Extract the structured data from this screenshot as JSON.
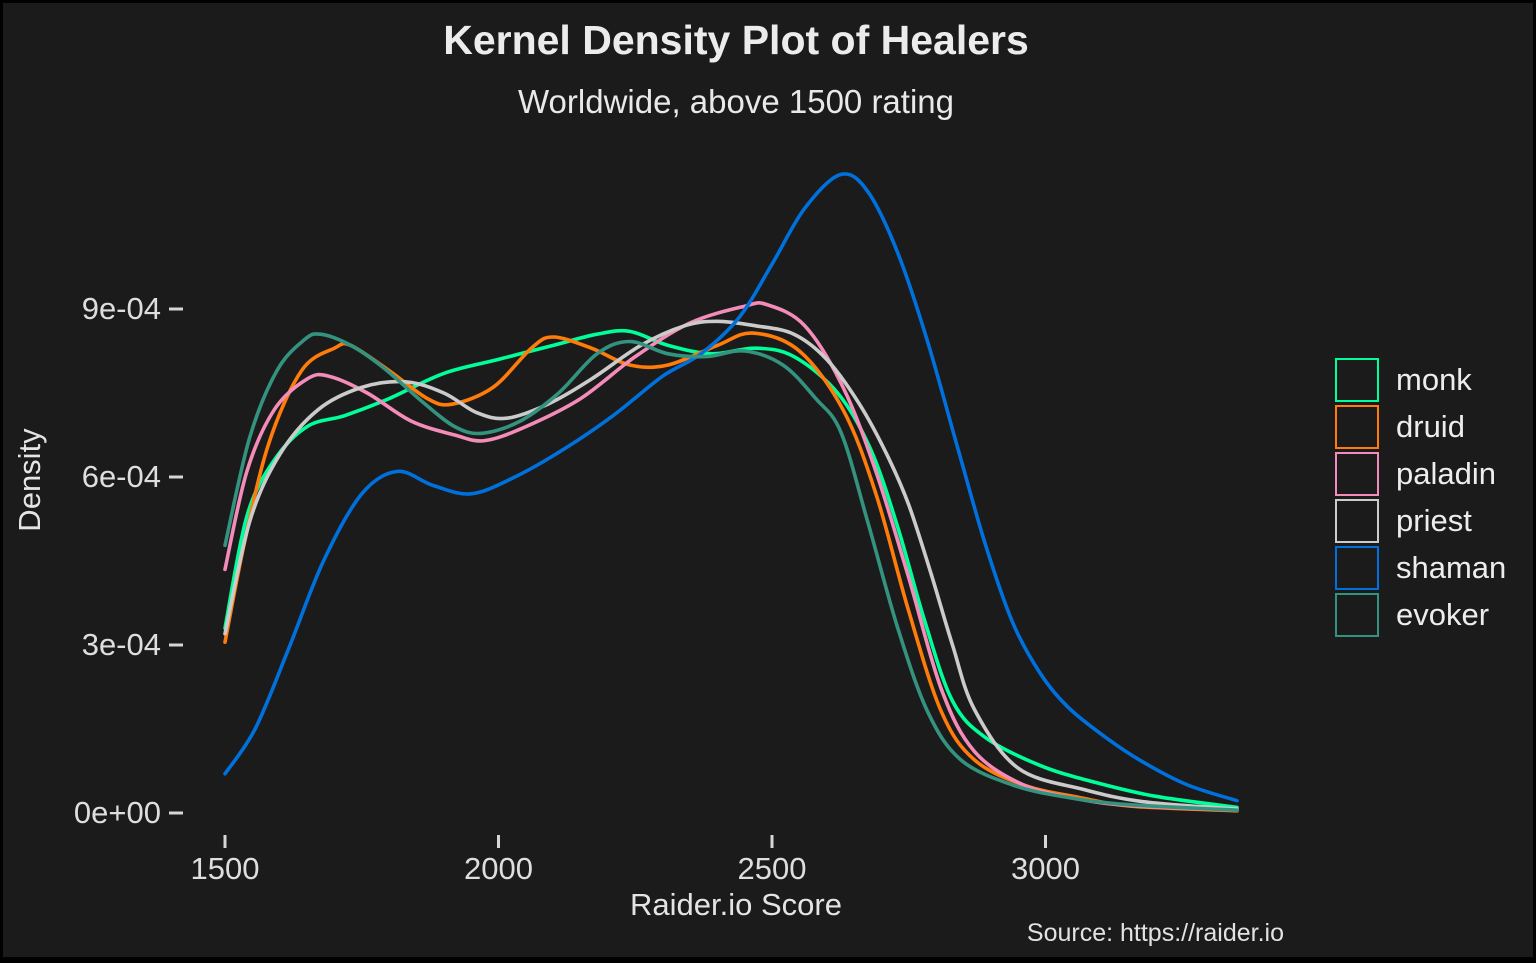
{
  "figure": {
    "title": "Kernel Density Plot of Healers",
    "subtitle": "Worldwide, above 1500 rating",
    "caption": "Source: https://raider.io",
    "background_color": "#1B1B1B",
    "text_color": "#E6E6E6"
  },
  "chart_data": {
    "type": "line",
    "subtype": "kernel-density",
    "title": "Kernel Density Plot of Healers",
    "subtitle": "Worldwide, above 1500 rating",
    "xlabel": "Raider.io Score",
    "ylabel": "Density",
    "caption": "Source: https://raider.io",
    "grid": false,
    "legend_position": "right",
    "x_range": [
      1500,
      3360
    ],
    "y_range": [
      0,
      0.00125
    ],
    "x_ticks": [
      {
        "label": "1500",
        "value": 1500
      },
      {
        "label": "2000",
        "value": 2000
      },
      {
        "label": "2500",
        "value": 2500
      },
      {
        "label": "3000",
        "value": 3000
      }
    ],
    "y_ticks": [
      {
        "label": "0e+00",
        "value": 0
      },
      {
        "label": "3e-04",
        "value": 0.0003
      },
      {
        "label": "6e-04",
        "value": 0.0006
      },
      {
        "label": "9e-04",
        "value": 0.0009
      }
    ],
    "density_unit": 0.0001,
    "series": [
      {
        "name": "monk",
        "color": "#00FF98",
        "points": [
          [
            1500,
            3.3
          ],
          [
            1540,
            5.3
          ],
          [
            1590,
            6.3
          ],
          [
            1650,
            6.9
          ],
          [
            1720,
            7.1
          ],
          [
            1800,
            7.4
          ],
          [
            1900,
            7.85
          ],
          [
            2000,
            8.1
          ],
          [
            2100,
            8.35
          ],
          [
            2180,
            8.55
          ],
          [
            2240,
            8.6
          ],
          [
            2310,
            8.35
          ],
          [
            2390,
            8.2
          ],
          [
            2470,
            8.3
          ],
          [
            2540,
            8.15
          ],
          [
            2620,
            7.5
          ],
          [
            2680,
            6.5
          ],
          [
            2730,
            5.1
          ],
          [
            2780,
            3.4
          ],
          [
            2830,
            2.0
          ],
          [
            2890,
            1.35
          ],
          [
            2990,
            0.85
          ],
          [
            3090,
            0.55
          ],
          [
            3200,
            0.3
          ],
          [
            3350,
            0.1
          ]
        ]
      },
      {
        "name": "druid",
        "color": "#FF7C0A",
        "points": [
          [
            1500,
            3.05
          ],
          [
            1535,
            4.8
          ],
          [
            1580,
            6.6
          ],
          [
            1640,
            7.9
          ],
          [
            1700,
            8.3
          ],
          [
            1730,
            8.35
          ],
          [
            1800,
            7.9
          ],
          [
            1870,
            7.4
          ],
          [
            1915,
            7.3
          ],
          [
            1990,
            7.6
          ],
          [
            2060,
            8.3
          ],
          [
            2100,
            8.5
          ],
          [
            2170,
            8.3
          ],
          [
            2240,
            8.0
          ],
          [
            2310,
            8.0
          ],
          [
            2400,
            8.35
          ],
          [
            2465,
            8.57
          ],
          [
            2550,
            8.25
          ],
          [
            2630,
            7.2
          ],
          [
            2690,
            5.7
          ],
          [
            2750,
            3.6
          ],
          [
            2810,
            1.8
          ],
          [
            2870,
            0.95
          ],
          [
            2960,
            0.5
          ],
          [
            3060,
            0.28
          ],
          [
            3160,
            0.12
          ],
          [
            3350,
            0.04
          ]
        ]
      },
      {
        "name": "paladin",
        "color": "#F48CBA",
        "points": [
          [
            1500,
            4.35
          ],
          [
            1540,
            6.1
          ],
          [
            1590,
            7.2
          ],
          [
            1650,
            7.75
          ],
          [
            1690,
            7.8
          ],
          [
            1760,
            7.5
          ],
          [
            1840,
            7.0
          ],
          [
            1920,
            6.75
          ],
          [
            1975,
            6.65
          ],
          [
            2050,
            6.9
          ],
          [
            2150,
            7.4
          ],
          [
            2250,
            8.15
          ],
          [
            2350,
            8.75
          ],
          [
            2450,
            9.05
          ],
          [
            2490,
            9.08
          ],
          [
            2560,
            8.7
          ],
          [
            2630,
            7.6
          ],
          [
            2690,
            6.1
          ],
          [
            2750,
            4.2
          ],
          [
            2810,
            2.2
          ],
          [
            2870,
            1.1
          ],
          [
            2960,
            0.5
          ],
          [
            3060,
            0.25
          ],
          [
            3160,
            0.13
          ],
          [
            3350,
            0.05
          ]
        ]
      },
      {
        "name": "priest",
        "color": "#CBCBCB",
        "points": [
          [
            1500,
            3.2
          ],
          [
            1545,
            5.2
          ],
          [
            1600,
            6.4
          ],
          [
            1670,
            7.2
          ],
          [
            1750,
            7.6
          ],
          [
            1830,
            7.7
          ],
          [
            1900,
            7.5
          ],
          [
            1960,
            7.15
          ],
          [
            2015,
            7.05
          ],
          [
            2090,
            7.3
          ],
          [
            2170,
            7.75
          ],
          [
            2260,
            8.35
          ],
          [
            2340,
            8.7
          ],
          [
            2400,
            8.78
          ],
          [
            2470,
            8.7
          ],
          [
            2540,
            8.55
          ],
          [
            2600,
            8.1
          ],
          [
            2660,
            7.3
          ],
          [
            2710,
            6.4
          ],
          [
            2750,
            5.5
          ],
          [
            2790,
            4.3
          ],
          [
            2830,
            3.0
          ],
          [
            2870,
            1.85
          ],
          [
            2950,
            0.8
          ],
          [
            3070,
            0.42
          ],
          [
            3180,
            0.2
          ],
          [
            3350,
            0.07
          ]
        ]
      },
      {
        "name": "shaman",
        "color": "#0070DD",
        "points": [
          [
            1500,
            0.7
          ],
          [
            1555,
            1.5
          ],
          [
            1615,
            2.9
          ],
          [
            1680,
            4.5
          ],
          [
            1750,
            5.7
          ],
          [
            1815,
            6.1
          ],
          [
            1880,
            5.85
          ],
          [
            1950,
            5.7
          ],
          [
            2030,
            6.0
          ],
          [
            2120,
            6.5
          ],
          [
            2210,
            7.1
          ],
          [
            2300,
            7.8
          ],
          [
            2370,
            8.2
          ],
          [
            2440,
            8.85
          ],
          [
            2500,
            9.8
          ],
          [
            2560,
            10.8
          ],
          [
            2625,
            11.4
          ],
          [
            2675,
            11.1
          ],
          [
            2730,
            10.0
          ],
          [
            2785,
            8.4
          ],
          [
            2840,
            6.5
          ],
          [
            2890,
            4.8
          ],
          [
            2940,
            3.4
          ],
          [
            2990,
            2.5
          ],
          [
            3040,
            1.9
          ],
          [
            3110,
            1.35
          ],
          [
            3180,
            0.9
          ],
          [
            3260,
            0.5
          ],
          [
            3350,
            0.22
          ]
        ]
      },
      {
        "name": "evoker",
        "color": "#33937F",
        "points": [
          [
            1500,
            4.78
          ],
          [
            1545,
            6.7
          ],
          [
            1595,
            7.9
          ],
          [
            1645,
            8.45
          ],
          [
            1675,
            8.55
          ],
          [
            1730,
            8.35
          ],
          [
            1790,
            7.95
          ],
          [
            1860,
            7.35
          ],
          [
            1920,
            6.9
          ],
          [
            1970,
            6.78
          ],
          [
            2040,
            7.0
          ],
          [
            2110,
            7.5
          ],
          [
            2180,
            8.2
          ],
          [
            2240,
            8.42
          ],
          [
            2310,
            8.2
          ],
          [
            2380,
            8.15
          ],
          [
            2450,
            8.25
          ],
          [
            2520,
            8.0
          ],
          [
            2580,
            7.4
          ],
          [
            2626,
            6.8
          ],
          [
            2675,
            5.2
          ],
          [
            2730,
            3.3
          ],
          [
            2785,
            1.8
          ],
          [
            2845,
            0.95
          ],
          [
            2940,
            0.5
          ],
          [
            3040,
            0.28
          ],
          [
            3150,
            0.15
          ],
          [
            3350,
            0.05
          ]
        ]
      }
    ]
  }
}
